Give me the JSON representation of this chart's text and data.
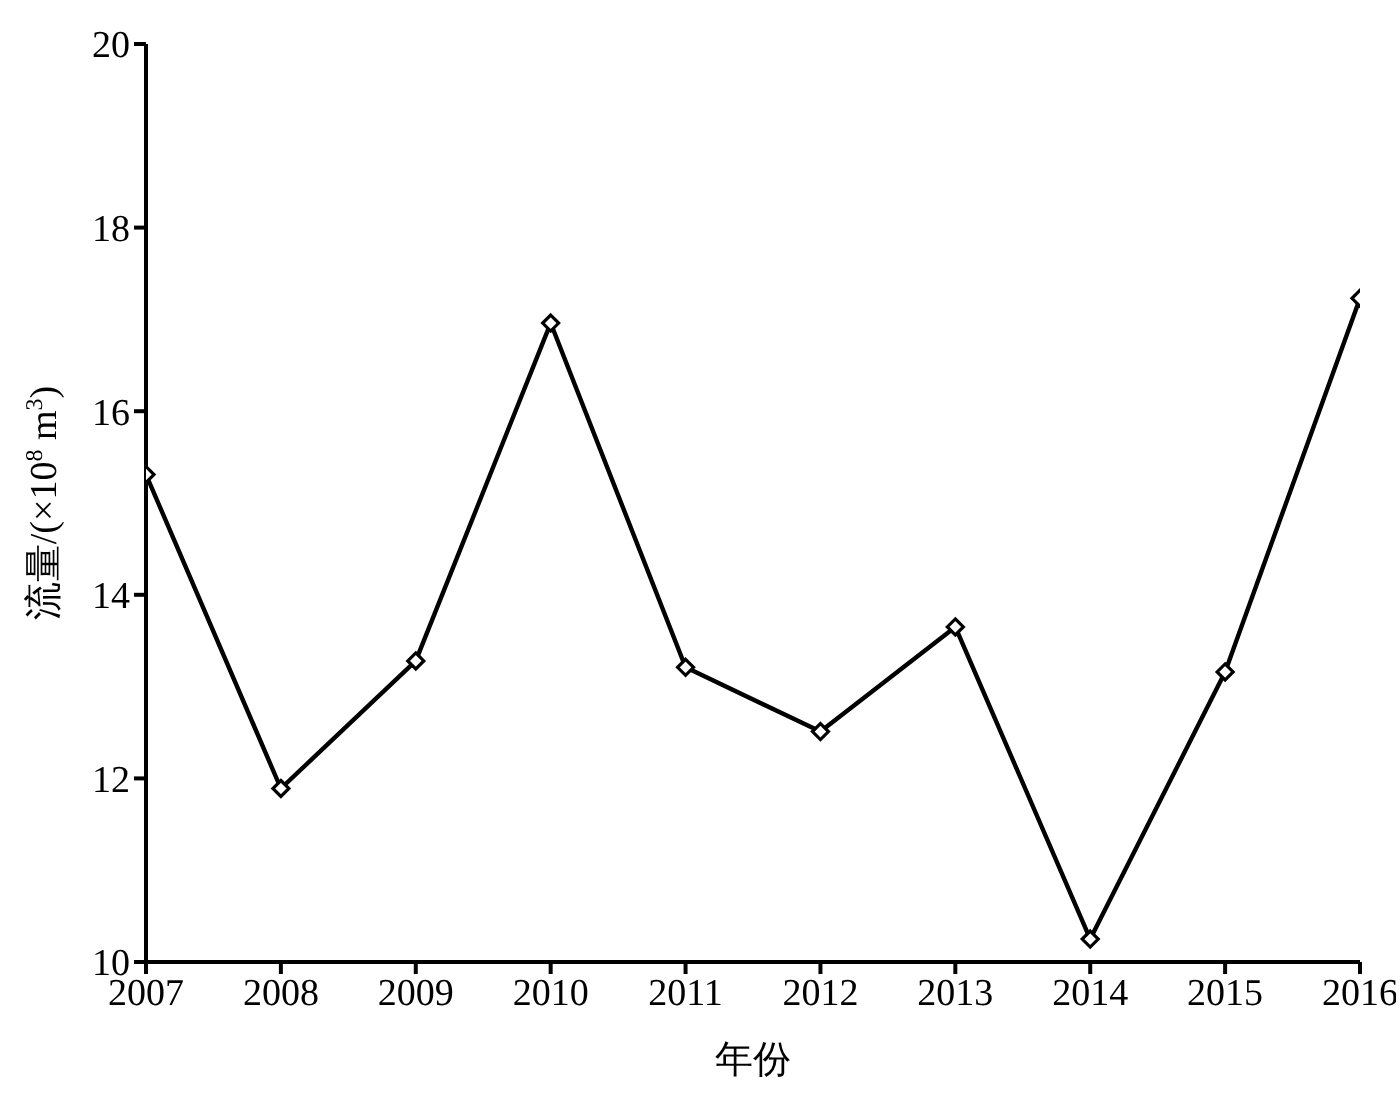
{
  "chart_data": {
    "type": "line",
    "xlabel": "年份",
    "ylabel": "流量/(×10$^{8}$ m$^{3}$)",
    "x": [
      2007,
      2008,
      2009,
      2010,
      2011,
      2012,
      2013,
      2014,
      2015,
      2016
    ],
    "series": [
      {
        "color": "#000000",
        "values": [
          15.31,
          11.89,
          13.28,
          16.96,
          13.21,
          12.51,
          13.65,
          10.25,
          13.16,
          17.23
        ]
      }
    ],
    "xlim": [
      2007,
      2016
    ],
    "xticks": [
      2007,
      2008,
      2009,
      2010,
      2011,
      2012,
      2013,
      2014,
      2015,
      2016
    ],
    "ylim": [
      10,
      20
    ],
    "yticks": [
      10,
      12,
      14,
      16,
      18,
      20
    ],
    "grid": false,
    "legend": false,
    "marker": "diamond",
    "line_style": "solid"
  }
}
